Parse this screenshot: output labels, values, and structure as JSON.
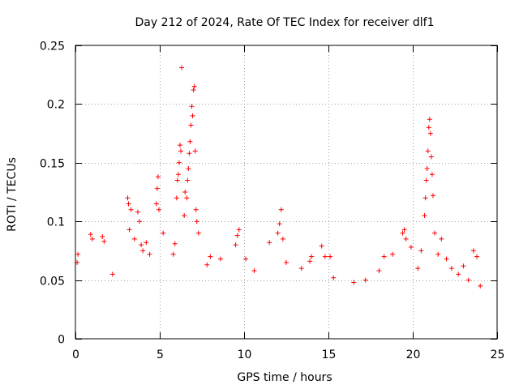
{
  "chart_data": {
    "type": "scatter",
    "title": "Day 212 of 2024, Rate Of TEC Index for receiver dlf1",
    "xlabel": "GPS time / hours",
    "ylabel": "ROTI / TECUs",
    "xlim": [
      0,
      25
    ],
    "ylim": [
      0,
      0.25
    ],
    "x_ticks": [
      0,
      5,
      10,
      15,
      20,
      25
    ],
    "x_tick_labels": [
      "0",
      "5",
      "10",
      "15",
      "20",
      "25"
    ],
    "y_ticks": [
      0,
      0.05,
      0.1,
      0.15,
      0.2,
      0.25
    ],
    "y_tick_labels": [
      "0",
      "0.05",
      "0.1",
      "0.15",
      "0.2",
      "0.25"
    ],
    "grid": true,
    "marker": "+",
    "color": "#ff0000",
    "series": [
      {
        "name": "ROTI",
        "points": [
          [
            0.1,
            0.065
          ],
          [
            0.15,
            0.072
          ],
          [
            0.9,
            0.089
          ],
          [
            1.0,
            0.085
          ],
          [
            1.6,
            0.087
          ],
          [
            1.7,
            0.083
          ],
          [
            2.2,
            0.055
          ],
          [
            3.1,
            0.12
          ],
          [
            3.15,
            0.115
          ],
          [
            3.2,
            0.093
          ],
          [
            3.3,
            0.11
          ],
          [
            3.5,
            0.085
          ],
          [
            3.7,
            0.108
          ],
          [
            3.8,
            0.1
          ],
          [
            3.9,
            0.08
          ],
          [
            4.0,
            0.075
          ],
          [
            4.2,
            0.082
          ],
          [
            4.4,
            0.072
          ],
          [
            4.8,
            0.115
          ],
          [
            4.85,
            0.128
          ],
          [
            4.9,
            0.138
          ],
          [
            4.95,
            0.11
          ],
          [
            5.2,
            0.09
          ],
          [
            5.8,
            0.072
          ],
          [
            5.9,
            0.081
          ],
          [
            6.0,
            0.12
          ],
          [
            6.05,
            0.135
          ],
          [
            6.1,
            0.14
          ],
          [
            6.15,
            0.15
          ],
          [
            6.2,
            0.165
          ],
          [
            6.25,
            0.16
          ],
          [
            6.3,
            0.231
          ],
          [
            6.45,
            0.105
          ],
          [
            6.5,
            0.125
          ],
          [
            6.6,
            0.12
          ],
          [
            6.65,
            0.135
          ],
          [
            6.7,
            0.145
          ],
          [
            6.75,
            0.158
          ],
          [
            6.8,
            0.168
          ],
          [
            6.85,
            0.182
          ],
          [
            6.9,
            0.198
          ],
          [
            6.95,
            0.19
          ],
          [
            7.0,
            0.212
          ],
          [
            7.05,
            0.215
          ],
          [
            7.1,
            0.16
          ],
          [
            7.15,
            0.11
          ],
          [
            7.2,
            0.1
          ],
          [
            7.3,
            0.09
          ],
          [
            7.8,
            0.063
          ],
          [
            8.0,
            0.07
          ],
          [
            8.6,
            0.068
          ],
          [
            9.5,
            0.08
          ],
          [
            9.6,
            0.088
          ],
          [
            9.7,
            0.093
          ],
          [
            10.1,
            0.068
          ],
          [
            10.6,
            0.058
          ],
          [
            11.5,
            0.082
          ],
          [
            12.0,
            0.09
          ],
          [
            12.1,
            0.098
          ],
          [
            12.2,
            0.11
          ],
          [
            12.3,
            0.085
          ],
          [
            12.5,
            0.065
          ],
          [
            13.4,
            0.06
          ],
          [
            13.9,
            0.066
          ],
          [
            14.0,
            0.07
          ],
          [
            14.6,
            0.079
          ],
          [
            14.8,
            0.07
          ],
          [
            15.1,
            0.07
          ],
          [
            15.3,
            0.052
          ],
          [
            16.5,
            0.048
          ],
          [
            17.2,
            0.05
          ],
          [
            18.0,
            0.058
          ],
          [
            18.3,
            0.07
          ],
          [
            18.8,
            0.072
          ],
          [
            19.4,
            0.09
          ],
          [
            19.5,
            0.093
          ],
          [
            19.6,
            0.085
          ],
          [
            19.9,
            0.078
          ],
          [
            20.3,
            0.06
          ],
          [
            20.5,
            0.075
          ],
          [
            20.7,
            0.105
          ],
          [
            20.75,
            0.12
          ],
          [
            20.8,
            0.135
          ],
          [
            20.85,
            0.145
          ],
          [
            20.9,
            0.16
          ],
          [
            20.95,
            0.18
          ],
          [
            21.0,
            0.187
          ],
          [
            21.05,
            0.175
          ],
          [
            21.1,
            0.155
          ],
          [
            21.15,
            0.14
          ],
          [
            21.2,
            0.122
          ],
          [
            21.3,
            0.09
          ],
          [
            21.5,
            0.072
          ],
          [
            21.7,
            0.085
          ],
          [
            22.0,
            0.068
          ],
          [
            22.3,
            0.06
          ],
          [
            22.7,
            0.055
          ],
          [
            23.0,
            0.062
          ],
          [
            23.3,
            0.05
          ],
          [
            23.6,
            0.075
          ],
          [
            23.8,
            0.07
          ],
          [
            24.0,
            0.045
          ]
        ]
      }
    ]
  }
}
